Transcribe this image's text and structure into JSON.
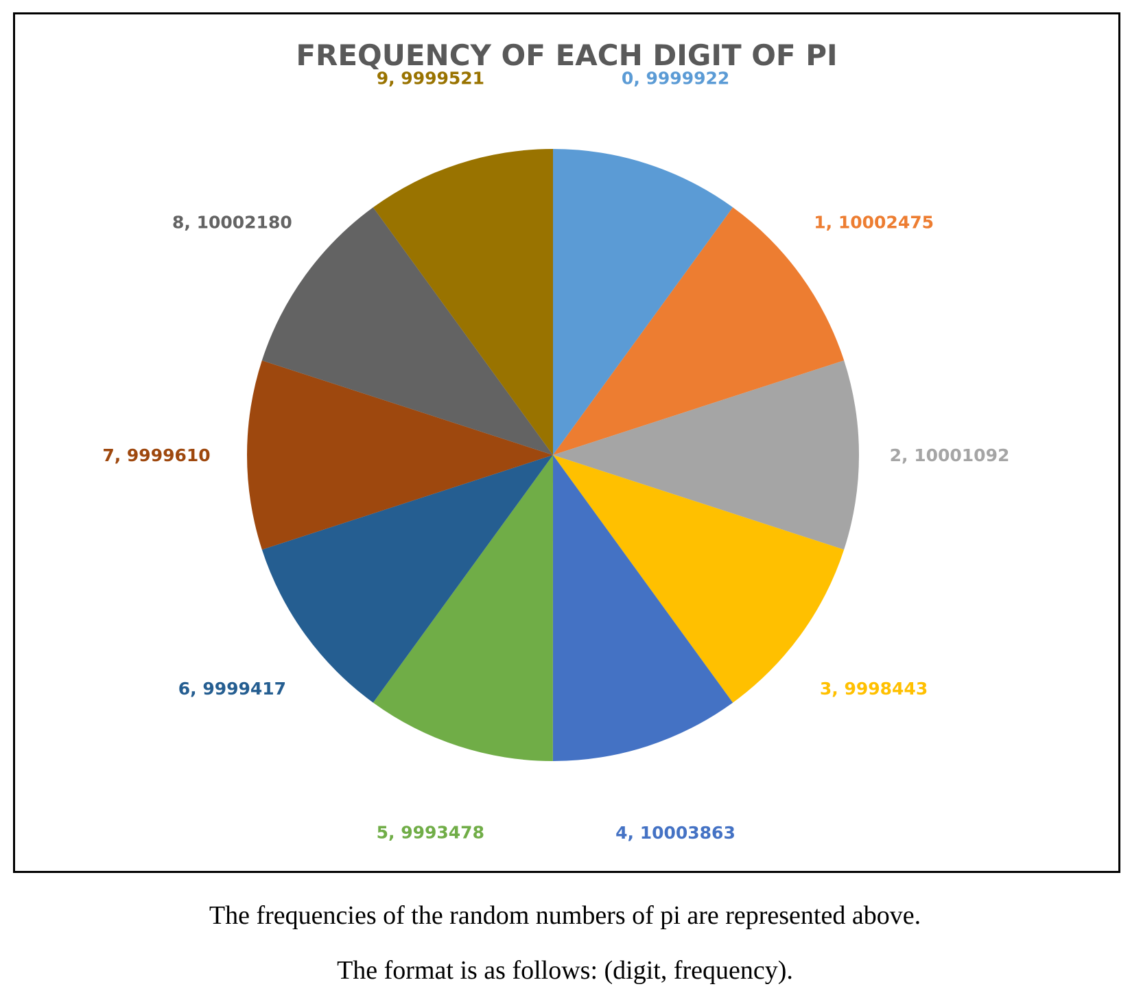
{
  "chart_data": {
    "type": "pie",
    "title": "FREQUENCY OF EACH DIGIT OF PI",
    "categories": [
      "0",
      "1",
      "2",
      "3",
      "4",
      "5",
      "6",
      "7",
      "8",
      "9"
    ],
    "values": [
      9999922,
      10002475,
      10001092,
      9998443,
      10003863,
      9993478,
      9999417,
      9999610,
      10002180,
      9999521
    ],
    "labels": [
      "0, 9999922",
      "1, 10002475",
      "2, 10001092",
      "3, 9998443",
      "4, 10003863",
      "5, 9993478",
      "6, 9999417",
      "7, 9999610",
      "8, 10002180",
      "9, 9999521"
    ],
    "colors": [
      "#5B9BD5",
      "#ED7D31",
      "#A5A5A5",
      "#FFC000",
      "#4472C4",
      "#70AD47",
      "#255E91",
      "#9E480E",
      "#636363",
      "#997300"
    ],
    "start_angle": "12 o'clock",
    "direction": "clockwise",
    "legend": "none",
    "data_label_format": "category, value"
  },
  "captions": {
    "line1": "The frequencies of the random numbers of pi are represented above.",
    "line2": "The format is as follows: (digit, frequency)."
  }
}
